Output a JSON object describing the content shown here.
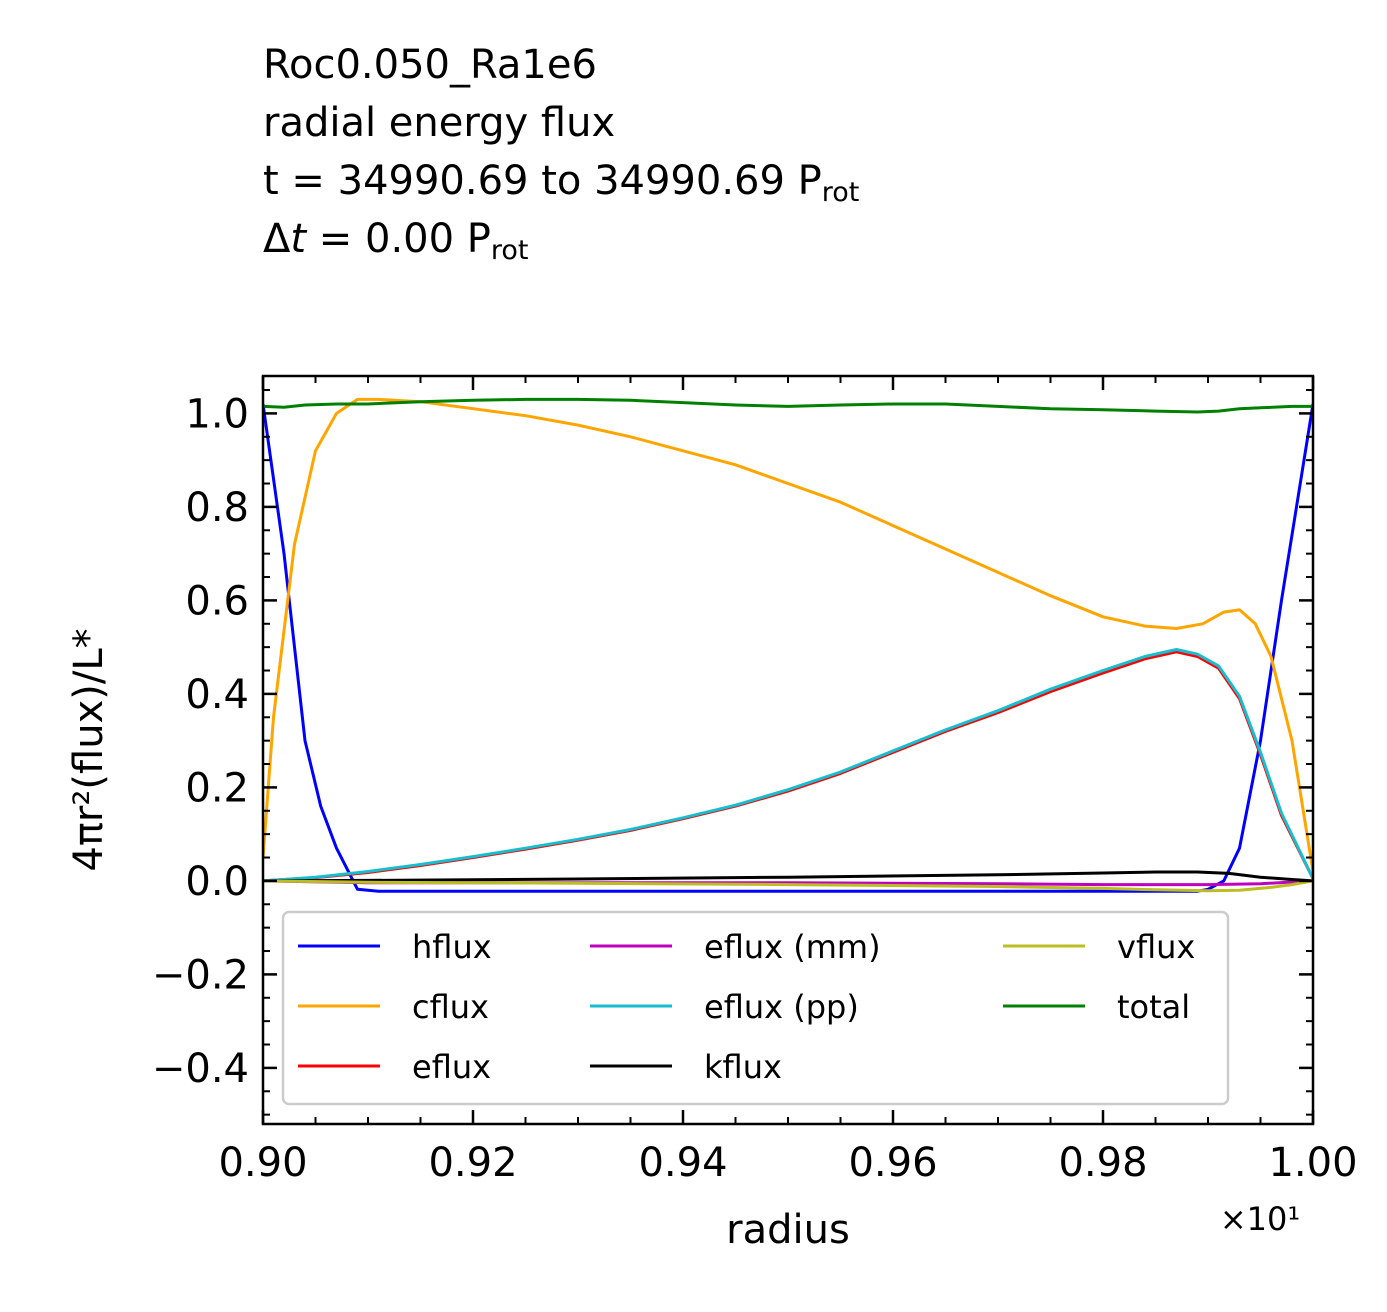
{
  "chart_data": {
    "type": "line",
    "title_lines": {
      "line1": "Roc0.050_Ra1e6",
      "line2": "radial energy flux",
      "line3_main": "t = 34990.69 to 34990.69 P",
      "line3_sub": "rot",
      "line4_prefix": "Δ",
      "line4_var": "t",
      "line4_main": " = 0.00 P",
      "line4_sub": "rot"
    },
    "xlabel": "radius",
    "ylabel": "4πr²(flux)/L*",
    "x_offset_label": "×10¹",
    "xlim": [
      0.9,
      1.0
    ],
    "ylim": [
      -0.52,
      1.08
    ],
    "x_ticks": [
      0.9,
      0.92,
      0.94,
      0.96,
      0.98,
      1.0
    ],
    "x_tick_labels": [
      "0.90",
      "0.92",
      "0.94",
      "0.96",
      "0.98",
      "1.00"
    ],
    "y_ticks": [
      -0.4,
      -0.2,
      0.0,
      0.2,
      0.4,
      0.6,
      0.8,
      1.0
    ],
    "y_tick_labels": [
      "−0.4",
      "−0.2",
      "0.0",
      "0.2",
      "0.4",
      "0.6",
      "0.8",
      "1.0"
    ],
    "grid": false,
    "legend_position": "lower-center",
    "series": [
      {
        "name": "hflux",
        "color": "#0000ff",
        "x": [
          0.9,
          0.902,
          0.904,
          0.9055,
          0.907,
          0.909,
          0.911,
          0.93,
          0.95,
          0.97,
          0.985,
          0.989,
          0.99,
          0.9915,
          0.993,
          0.995,
          0.997,
          1.0
        ],
        "y": [
          1.02,
          0.7,
          0.3,
          0.16,
          0.07,
          -0.018,
          -0.022,
          -0.022,
          -0.022,
          -0.022,
          -0.022,
          -0.022,
          -0.018,
          0.0,
          0.07,
          0.3,
          0.6,
          1.02
        ]
      },
      {
        "name": "cflux",
        "color": "#ffa500",
        "x": [
          0.9,
          0.901,
          0.903,
          0.905,
          0.907,
          0.909,
          0.911,
          0.915,
          0.92,
          0.925,
          0.93,
          0.935,
          0.94,
          0.945,
          0.95,
          0.955,
          0.96,
          0.965,
          0.97,
          0.975,
          0.98,
          0.984,
          0.987,
          0.9895,
          0.9915,
          0.993,
          0.9945,
          0.996,
          0.998,
          1.0
        ],
        "y": [
          0.05,
          0.35,
          0.72,
          0.92,
          1.0,
          1.03,
          1.03,
          1.025,
          1.01,
          0.995,
          0.975,
          0.95,
          0.92,
          0.89,
          0.85,
          0.81,
          0.76,
          0.71,
          0.66,
          0.61,
          0.565,
          0.545,
          0.54,
          0.55,
          0.575,
          0.58,
          0.55,
          0.48,
          0.3,
          0.02
        ]
      },
      {
        "name": "eflux",
        "color": "#ff0000",
        "x": [
          0.9,
          0.905,
          0.91,
          0.915,
          0.92,
          0.925,
          0.93,
          0.935,
          0.94,
          0.945,
          0.95,
          0.955,
          0.96,
          0.965,
          0.97,
          0.975,
          0.98,
          0.984,
          0.987,
          0.989,
          0.991,
          0.993,
          0.995,
          0.997,
          1.0
        ],
        "y": [
          0.0,
          0.007,
          0.018,
          0.033,
          0.05,
          0.068,
          0.087,
          0.108,
          0.133,
          0.16,
          0.192,
          0.23,
          0.275,
          0.32,
          0.36,
          0.405,
          0.445,
          0.475,
          0.49,
          0.48,
          0.455,
          0.39,
          0.27,
          0.14,
          0.005
        ]
      },
      {
        "name": "eflux (mm)",
        "color": "#bf00bf",
        "x": [
          0.9,
          0.91,
          0.93,
          0.95,
          0.97,
          0.98,
          0.99,
          0.995,
          1.0
        ],
        "y": [
          0.0,
          -0.004,
          -0.004,
          -0.004,
          -0.006,
          -0.008,
          -0.008,
          -0.006,
          0.0
        ]
      },
      {
        "name": "eflux (pp)",
        "color": "#17becf",
        "x": [
          0.9,
          0.905,
          0.91,
          0.915,
          0.92,
          0.925,
          0.93,
          0.935,
          0.94,
          0.945,
          0.95,
          0.955,
          0.96,
          0.965,
          0.97,
          0.975,
          0.98,
          0.984,
          0.987,
          0.989,
          0.991,
          0.993,
          0.995,
          0.997,
          1.0
        ],
        "y": [
          0.0,
          0.008,
          0.02,
          0.035,
          0.052,
          0.07,
          0.089,
          0.11,
          0.135,
          0.162,
          0.195,
          0.233,
          0.278,
          0.323,
          0.364,
          0.41,
          0.45,
          0.48,
          0.495,
          0.485,
          0.46,
          0.395,
          0.275,
          0.145,
          0.005
        ]
      },
      {
        "name": "kflux",
        "color": "#000000",
        "x": [
          0.9,
          0.91,
          0.93,
          0.95,
          0.97,
          0.98,
          0.985,
          0.989,
          0.992,
          0.995,
          0.998,
          1.0
        ],
        "y": [
          0.0,
          0.001,
          0.004,
          0.008,
          0.013,
          0.017,
          0.019,
          0.019,
          0.016,
          0.008,
          0.003,
          0.0
        ]
      },
      {
        "name": "vflux",
        "color": "#bcbd22",
        "x": [
          0.9,
          0.91,
          0.93,
          0.95,
          0.97,
          0.98,
          0.985,
          0.99,
          0.993,
          0.996,
          0.998,
          1.0
        ],
        "y": [
          0.0,
          -0.003,
          -0.005,
          -0.008,
          -0.012,
          -0.016,
          -0.019,
          -0.021,
          -0.02,
          -0.014,
          -0.008,
          0.0
        ]
      },
      {
        "name": "total",
        "color": "#008000",
        "x": [
          0.9,
          0.902,
          0.904,
          0.907,
          0.91,
          0.915,
          0.92,
          0.925,
          0.93,
          0.935,
          0.94,
          0.945,
          0.95,
          0.955,
          0.96,
          0.965,
          0.97,
          0.975,
          0.98,
          0.985,
          0.989,
          0.991,
          0.993,
          0.995,
          0.998,
          1.0
        ],
        "y": [
          1.015,
          1.013,
          1.018,
          1.02,
          1.02,
          1.025,
          1.028,
          1.03,
          1.03,
          1.028,
          1.023,
          1.018,
          1.015,
          1.018,
          1.02,
          1.02,
          1.015,
          1.01,
          1.008,
          1.005,
          1.003,
          1.005,
          1.01,
          1.012,
          1.015,
          1.015
        ]
      }
    ]
  }
}
